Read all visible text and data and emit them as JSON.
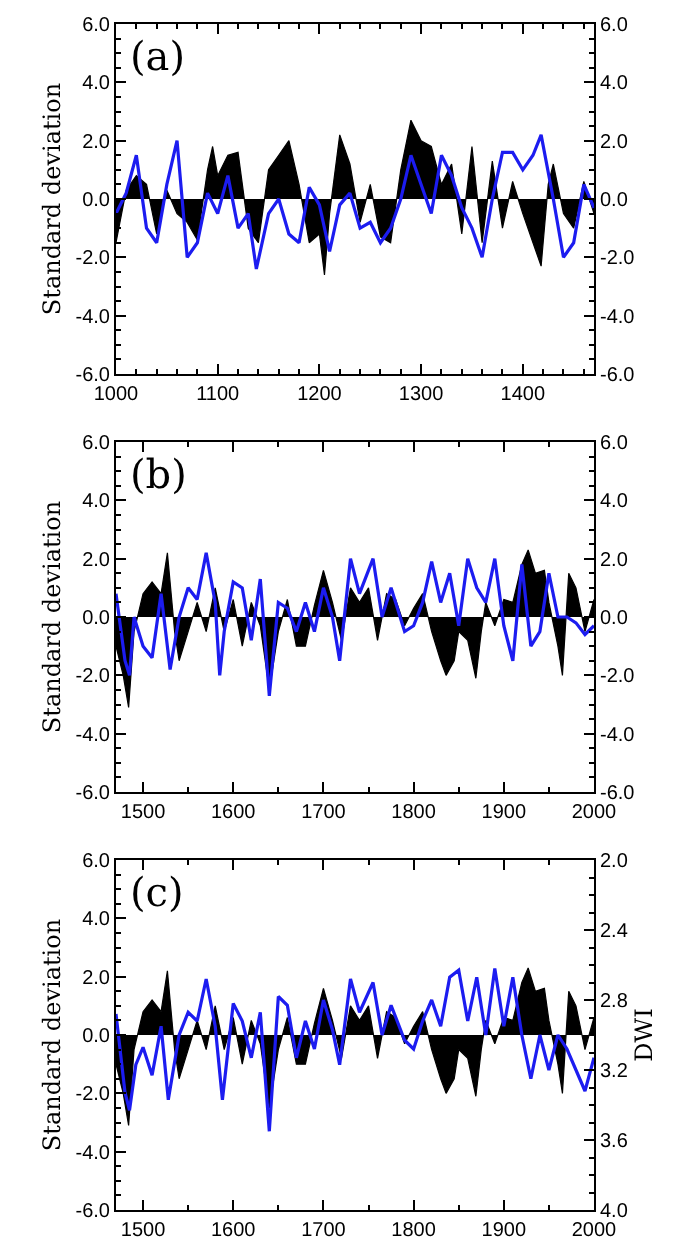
{
  "chart_data": [
    {
      "type": "line",
      "annotations": [
        "(a)"
      ],
      "ylabel": "Standard deviation",
      "xlim": [
        1000,
        1470
      ],
      "xticks": [
        1000,
        1100,
        1200,
        1300,
        1400
      ],
      "ylim": [
        -6,
        6
      ],
      "yticks": [
        {
          "value": -6,
          "label": "-6.0"
        },
        {
          "value": -4,
          "label": "-4.0"
        },
        {
          "value": -2,
          "label": "-2.0"
        },
        {
          "value": 0,
          "label": "0.0"
        },
        {
          "value": 2,
          "label": "2.0"
        },
        {
          "value": 4,
          "label": "4.0"
        },
        {
          "value": 6,
          "label": "6.0"
        }
      ],
      "y2lim": [
        -6,
        6
      ],
      "y2ticks": [
        {
          "value": -6,
          "label": "-6.0"
        },
        {
          "value": -4,
          "label": "-4.0"
        },
        {
          "value": -2,
          "label": "-2.0"
        },
        {
          "value": 0,
          "label": "0.0"
        },
        {
          "value": 2,
          "label": "2.0"
        },
        {
          "value": 4,
          "label": "4.0"
        },
        {
          "value": 6,
          "label": "6.0"
        }
      ],
      "series": [
        {
          "type": "area",
          "color": "#000000",
          "x": [
            1000,
            1010,
            1020,
            1030,
            1040,
            1050,
            1060,
            1070,
            1080,
            1090,
            1095,
            1100,
            1110,
            1120,
            1130,
            1140,
            1150,
            1160,
            1170,
            1180,
            1190,
            1200,
            1205,
            1210,
            1220,
            1230,
            1240,
            1250,
            1260,
            1270,
            1280,
            1290,
            1300,
            1310,
            1320,
            1330,
            1340,
            1350,
            1360,
            1370,
            1380,
            1390,
            1400,
            1410,
            1418,
            1425,
            1430,
            1440,
            1450,
            1460,
            1470
          ],
          "values": [
            -1.5,
            0.3,
            0.8,
            0.5,
            -1.2,
            0.3,
            -0.5,
            -0.8,
            -1.4,
            1.0,
            1.8,
            0.8,
            1.5,
            1.6,
            -1.0,
            -1.5,
            1.0,
            1.5,
            2.0,
            0.5,
            -1.5,
            -1.2,
            -2.6,
            -0.5,
            2.2,
            1.2,
            -0.8,
            0.5,
            -1.3,
            -1.5,
            1.0,
            2.7,
            2.0,
            1.8,
            0.5,
            1.2,
            -1.2,
            1.8,
            -1.5,
            1.3,
            -1.0,
            0.6,
            -0.5,
            -1.5,
            -2.3,
            0.5,
            1.2,
            -0.5,
            -1.0,
            0.6,
            -0.5
          ]
        },
        {
          "color": "#1c1cf0",
          "x": [
            1000,
            1010,
            1020,
            1030,
            1040,
            1050,
            1060,
            1070,
            1080,
            1090,
            1100,
            1110,
            1120,
            1130,
            1138,
            1150,
            1160,
            1170,
            1180,
            1190,
            1200,
            1210,
            1220,
            1230,
            1240,
            1250,
            1260,
            1270,
            1280,
            1290,
            1300,
            1310,
            1320,
            1330,
            1340,
            1350,
            1360,
            1370,
            1380,
            1390,
            1400,
            1410,
            1418,
            1430,
            1440,
            1450,
            1460,
            1470
          ],
          "values": [
            -0.5,
            0.2,
            1.5,
            -1.0,
            -1.5,
            0.5,
            2.0,
            -2.0,
            -1.5,
            0.2,
            -0.5,
            0.8,
            -1.0,
            -0.5,
            -2.4,
            -0.5,
            0.0,
            -1.2,
            -1.5,
            0.4,
            -0.2,
            -1.8,
            -0.2,
            0.2,
            -1.0,
            -0.8,
            -1.5,
            -1.0,
            0.0,
            1.5,
            0.5,
            -0.5,
            1.5,
            0.8,
            -0.3,
            -1.0,
            -2.0,
            0.0,
            1.6,
            1.6,
            1.0,
            1.5,
            2.2,
            0.0,
            -2.0,
            -1.5,
            0.5,
            -0.3
          ]
        }
      ]
    },
    {
      "type": "line",
      "annotations": [
        "(b)"
      ],
      "ylabel": "Standard deviation",
      "xlim": [
        1470,
        2000
      ],
      "xticks": [
        1500,
        1600,
        1700,
        1800,
        1900,
        2000
      ],
      "ylim": [
        -6,
        6
      ],
      "yticks": [
        {
          "value": -6,
          "label": "-6.0"
        },
        {
          "value": -4,
          "label": "-4.0"
        },
        {
          "value": -2,
          "label": "-2.0"
        },
        {
          "value": 0,
          "label": "0.0"
        },
        {
          "value": 2,
          "label": "2.0"
        },
        {
          "value": 4,
          "label": "4.0"
        },
        {
          "value": 6,
          "label": "6.0"
        }
      ],
      "y2lim": [
        -6,
        6
      ],
      "y2ticks": [
        {
          "value": -6,
          "label": "-6.0"
        },
        {
          "value": -4,
          "label": "-4.0"
        },
        {
          "value": -2,
          "label": "-2.0"
        },
        {
          "value": 0,
          "label": "0.0"
        },
        {
          "value": 2,
          "label": "2.0"
        },
        {
          "value": 4,
          "label": "4.0"
        },
        {
          "value": 6,
          "label": "6.0"
        }
      ],
      "series": [
        {
          "type": "area",
          "color": "#000000",
          "x": [
            1470,
            1478,
            1484,
            1490,
            1500,
            1510,
            1520,
            1527,
            1535,
            1540,
            1550,
            1560,
            1570,
            1580,
            1590,
            1600,
            1610,
            1620,
            1630,
            1640,
            1650,
            1660,
            1670,
            1680,
            1690,
            1700,
            1710,
            1720,
            1730,
            1740,
            1750,
            1760,
            1770,
            1780,
            1790,
            1800,
            1810,
            1820,
            1830,
            1836,
            1845,
            1850,
            1860,
            1869,
            1875,
            1880,
            1890,
            1900,
            1910,
            1920,
            1927,
            1935,
            1945,
            1950,
            1960,
            1965,
            1972,
            1980,
            1990,
            2000
          ],
          "values": [
            -1.0,
            -2.0,
            -3.1,
            -0.5,
            0.8,
            1.2,
            0.8,
            2.2,
            -0.5,
            -1.5,
            -0.5,
            0.5,
            -0.5,
            1.0,
            -0.5,
            0.6,
            -1.0,
            0.5,
            -0.3,
            -2.5,
            -0.5,
            0.6,
            -1.0,
            -1.0,
            0.4,
            1.6,
            0.5,
            -0.8,
            1.0,
            0.5,
            1.0,
            -0.8,
            0.8,
            0.6,
            -0.3,
            0.3,
            0.8,
            -0.5,
            -1.5,
            -2.0,
            -1.5,
            -0.5,
            -0.8,
            -2.1,
            -0.5,
            0.5,
            -0.3,
            0.6,
            0.5,
            1.8,
            2.3,
            1.5,
            1.6,
            0.5,
            -1.0,
            -2.0,
            1.5,
            1.0,
            -0.5,
            0.6
          ]
        },
        {
          "color": "#1c1cf0",
          "x": [
            1470,
            1480,
            1485,
            1490,
            1500,
            1510,
            1520,
            1530,
            1540,
            1550,
            1560,
            1570,
            1580,
            1585,
            1590,
            1600,
            1610,
            1620,
            1630,
            1640,
            1650,
            1660,
            1670,
            1680,
            1690,
            1700,
            1710,
            1718,
            1730,
            1740,
            1755,
            1765,
            1775,
            1790,
            1800,
            1810,
            1820,
            1830,
            1840,
            1850,
            1860,
            1870,
            1880,
            1890,
            1900,
            1910,
            1920,
            1930,
            1940,
            1950,
            1960,
            1970,
            1980,
            1990,
            2000
          ],
          "values": [
            0.8,
            -1.5,
            -2.0,
            0.0,
            -1.0,
            -1.4,
            0.8,
            -1.8,
            0.0,
            1.0,
            0.6,
            2.2,
            0.5,
            -2.0,
            -0.5,
            1.2,
            1.0,
            -0.8,
            1.3,
            -2.7,
            0.5,
            0.3,
            -0.5,
            0.5,
            -0.5,
            1.0,
            0.0,
            -1.5,
            2.0,
            0.8,
            2.0,
            0.0,
            1.0,
            -0.5,
            -0.3,
            0.5,
            1.9,
            0.5,
            1.5,
            -0.3,
            2.0,
            1.0,
            0.5,
            2.0,
            -0.3,
            -1.5,
            1.8,
            -1.0,
            -0.5,
            1.5,
            0.0,
            0.0,
            -0.2,
            -0.6,
            -0.3
          ]
        }
      ]
    },
    {
      "type": "line",
      "annotations": [
        "(c)"
      ],
      "ylabel": "Standard deviation",
      "y2label": "DWI",
      "xlim": [
        1470,
        2000
      ],
      "xticks": [
        1500,
        1600,
        1700,
        1800,
        1900,
        2000
      ],
      "ylim": [
        -6,
        6
      ],
      "yticks": [
        {
          "value": -6,
          "label": "-6.0"
        },
        {
          "value": -4,
          "label": "-4.0"
        },
        {
          "value": -2,
          "label": "-2.0"
        },
        {
          "value": 0,
          "label": "0.0"
        },
        {
          "value": 2,
          "label": "2.0"
        },
        {
          "value": 4,
          "label": "4.0"
        },
        {
          "value": 6,
          "label": "6.0"
        }
      ],
      "y2lim": [
        4.0,
        2.0
      ],
      "y2ticks": [
        {
          "value": 2.0,
          "label": "2.0"
        },
        {
          "value": 2.4,
          "label": "2.4"
        },
        {
          "value": 2.8,
          "label": "2.8"
        },
        {
          "value": 3.2,
          "label": "3.2"
        },
        {
          "value": 3.6,
          "label": "3.6"
        },
        {
          "value": 4.0,
          "label": "4.0"
        }
      ],
      "series": [
        {
          "type": "area",
          "color": "#000000",
          "x": [
            1470,
            1478,
            1484,
            1490,
            1500,
            1510,
            1520,
            1527,
            1535,
            1540,
            1550,
            1560,
            1570,
            1580,
            1590,
            1600,
            1610,
            1620,
            1630,
            1640,
            1650,
            1660,
            1670,
            1680,
            1690,
            1700,
            1710,
            1720,
            1730,
            1740,
            1750,
            1760,
            1770,
            1780,
            1790,
            1800,
            1810,
            1820,
            1830,
            1836,
            1845,
            1850,
            1860,
            1869,
            1875,
            1880,
            1890,
            1900,
            1910,
            1920,
            1927,
            1935,
            1945,
            1950,
            1960,
            1965,
            1972,
            1980,
            1990,
            2000
          ],
          "values": [
            -1.0,
            -2.0,
            -3.1,
            -0.5,
            0.8,
            1.2,
            0.8,
            2.2,
            -0.5,
            -1.5,
            -0.5,
            0.5,
            -0.5,
            1.0,
            -0.5,
            0.6,
            -1.0,
            0.5,
            -0.3,
            -2.5,
            -0.5,
            0.6,
            -1.0,
            -1.0,
            0.4,
            1.6,
            0.5,
            -0.8,
            1.0,
            0.5,
            1.0,
            -0.8,
            0.8,
            0.6,
            -0.3,
            0.3,
            0.8,
            -0.5,
            -1.5,
            -2.0,
            -1.5,
            -0.5,
            -0.8,
            -2.1,
            -0.5,
            0.5,
            -0.3,
            0.6,
            0.5,
            1.8,
            2.3,
            1.5,
            1.6,
            0.5,
            -1.0,
            -2.0,
            1.5,
            1.0,
            -0.5,
            0.6
          ]
        },
        {
          "axis": "y2",
          "color": "#1c1cf0",
          "x": [
            1470,
            1480,
            1485,
            1492,
            1500,
            1510,
            1520,
            1528,
            1540,
            1550,
            1560,
            1570,
            1580,
            1588,
            1600,
            1610,
            1620,
            1630,
            1640,
            1650,
            1660,
            1670,
            1680,
            1690,
            1700,
            1710,
            1718,
            1730,
            1740,
            1755,
            1765,
            1775,
            1790,
            1800,
            1810,
            1820,
            1830,
            1840,
            1850,
            1860,
            1870,
            1880,
            1890,
            1900,
            1910,
            1920,
            1930,
            1940,
            1950,
            1960,
            1970,
            1980,
            1990,
            2000
          ],
          "values": [
            2.88,
            3.33,
            3.43,
            3.17,
            3.07,
            3.23,
            2.95,
            3.37,
            3.0,
            2.87,
            2.92,
            2.68,
            2.95,
            3.37,
            2.82,
            2.92,
            3.13,
            2.87,
            3.55,
            2.78,
            2.83,
            3.13,
            2.92,
            3.08,
            2.8,
            2.97,
            3.17,
            2.68,
            2.87,
            2.7,
            3.0,
            2.83,
            3.03,
            3.08,
            2.92,
            2.8,
            2.95,
            2.67,
            2.63,
            2.92,
            2.67,
            3.0,
            2.62,
            2.95,
            2.67,
            3.0,
            3.25,
            3.0,
            3.2,
            3.0,
            3.08,
            3.2,
            3.32,
            3.13
          ]
        }
      ]
    }
  ]
}
